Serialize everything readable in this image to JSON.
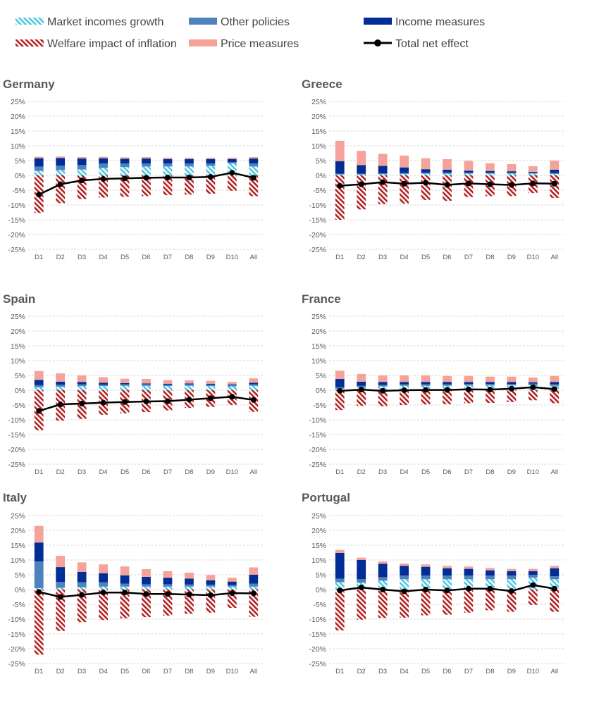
{
  "legend": [
    {
      "key": "market",
      "label": "Market incomes growth",
      "color": "#4BC8E3"
    },
    {
      "key": "other",
      "label": "Other policies",
      "color": "#4F81BD"
    },
    {
      "key": "income",
      "label": "Income measures",
      "color": "#002D96"
    },
    {
      "key": "welfare",
      "label": "Welfare impact of inflation",
      "color": "#B22222"
    },
    {
      "key": "price",
      "label": "Price measures",
      "color": "#F4A29A"
    },
    {
      "key": "total",
      "label": "Total net effect",
      "color": "#000000"
    }
  ],
  "chart_data": [
    {
      "type": "bar",
      "title": "Germany",
      "categories": [
        "D1",
        "D2",
        "D3",
        "D4",
        "D5",
        "D6",
        "D7",
        "D8",
        "D9",
        "D10",
        "All"
      ],
      "ylim": [
        -25,
        25
      ],
      "yticks": [
        "-25%",
        "-20%",
        "-15%",
        "-10%",
        "-5%",
        "0%",
        "5%",
        "10%",
        "15%",
        "20%",
        "25%"
      ],
      "grid": true,
      "series": [
        {
          "name": "Market incomes growth",
          "values": [
            1.5,
            1.8,
            2.0,
            2.5,
            2.8,
            3.0,
            3.0,
            3.0,
            3.2,
            4.0,
            3.0
          ]
        },
        {
          "name": "Other policies",
          "values": [
            1.5,
            1.5,
            1.5,
            1.5,
            1.2,
            1.0,
            1.0,
            1.0,
            0.8,
            0.5,
            1.0
          ]
        },
        {
          "name": "Income measures",
          "values": [
            2.8,
            2.6,
            2.2,
            1.8,
            1.6,
            1.7,
            1.5,
            1.5,
            1.5,
            1.0,
            1.7
          ]
        },
        {
          "name": "Price measures",
          "values": [
            0.5,
            0.5,
            0.5,
            0.5,
            0.5,
            0.5,
            0.5,
            0.5,
            0.5,
            0.5,
            0.5
          ]
        },
        {
          "name": "Welfare impact of inflation",
          "values": [
            -12.7,
            -9.4,
            -8.0,
            -7.5,
            -7.2,
            -7.0,
            -6.7,
            -6.5,
            -6.2,
            -5.2,
            -7.0
          ]
        },
        {
          "name": "Total net effect",
          "values": [
            -6.5,
            -3.0,
            -1.7,
            -1.2,
            -1.0,
            -0.8,
            -0.7,
            -0.7,
            -0.5,
            0.9,
            -0.8
          ]
        }
      ]
    },
    {
      "type": "bar",
      "title": "Greece",
      "categories": [
        "D1",
        "D2",
        "D3",
        "D4",
        "D5",
        "D6",
        "D7",
        "D8",
        "D9",
        "D10",
        "All"
      ],
      "ylim": [
        -25,
        25
      ],
      "yticks": [
        "-25%",
        "-20%",
        "-15%",
        "-10%",
        "-5%",
        "0%",
        "5%",
        "10%",
        "15%",
        "20%",
        "25%"
      ],
      "grid": true,
      "series": [
        {
          "name": "Market incomes growth",
          "values": [
            0.3,
            0.3,
            0.4,
            0.5,
            0.6,
            0.6,
            0.6,
            0.6,
            0.6,
            0.6,
            0.5
          ]
        },
        {
          "name": "Other policies",
          "values": [
            0.3,
            0.3,
            0.3,
            0.3,
            0.3,
            0.3,
            0.3,
            0.3,
            0.3,
            0.3,
            0.3
          ]
        },
        {
          "name": "Income measures",
          "values": [
            4.2,
            2.9,
            2.5,
            1.9,
            1.2,
            1.0,
            0.7,
            0.6,
            0.5,
            0.3,
            1.1
          ]
        },
        {
          "name": "Price measures",
          "values": [
            6.9,
            4.8,
            4.1,
            4.0,
            3.7,
            3.6,
            3.3,
            2.6,
            2.4,
            1.9,
            3.1
          ]
        },
        {
          "name": "Welfare impact of inflation",
          "values": [
            -15.0,
            -11.5,
            -9.7,
            -9.5,
            -8.3,
            -8.6,
            -7.3,
            -7.0,
            -7.0,
            -6.0,
            -7.6
          ]
        },
        {
          "name": "Total net effect",
          "values": [
            -3.5,
            -3.0,
            -2.3,
            -2.8,
            -2.5,
            -3.2,
            -2.7,
            -3.0,
            -3.2,
            -2.7,
            -2.8
          ]
        }
      ]
    },
    {
      "type": "bar",
      "title": "Spain",
      "categories": [
        "D1",
        "D2",
        "D3",
        "D4",
        "D5",
        "D6",
        "D7",
        "D8",
        "D9",
        "D10",
        "All"
      ],
      "ylim": [
        -25,
        25
      ],
      "yticks": [
        "-25%",
        "-20%",
        "-15%",
        "-10%",
        "-5%",
        "0%",
        "5%",
        "10%",
        "15%",
        "20%",
        "25%"
      ],
      "grid": true,
      "series": [
        {
          "name": "Market incomes growth",
          "values": [
            1.0,
            1.2,
            1.4,
            1.4,
            1.5,
            1.5,
            1.4,
            1.5,
            1.4,
            1.3,
            1.5
          ]
        },
        {
          "name": "Other policies",
          "values": [
            0.7,
            0.7,
            0.6,
            0.5,
            0.5,
            0.5,
            0.5,
            0.5,
            0.5,
            0.5,
            0.5
          ]
        },
        {
          "name": "Income measures",
          "values": [
            1.8,
            1.0,
            0.8,
            0.6,
            0.4,
            0.3,
            0.3,
            0.3,
            0.3,
            0.2,
            0.5
          ]
        },
        {
          "name": "Price measures",
          "values": [
            3.0,
            2.8,
            2.2,
            1.9,
            1.5,
            1.5,
            1.2,
            1.0,
            1.0,
            0.8,
            1.5
          ]
        },
        {
          "name": "Welfare impact of inflation",
          "values": [
            -13.5,
            -10.3,
            -9.7,
            -8.3,
            -7.8,
            -7.4,
            -6.8,
            -6.0,
            -5.6,
            -5.0,
            -7.3
          ]
        },
        {
          "name": "Total net effect",
          "values": [
            -7.0,
            -4.8,
            -4.5,
            -4.2,
            -4.0,
            -3.8,
            -3.7,
            -3.2,
            -2.7,
            -2.2,
            -3.3
          ]
        }
      ]
    },
    {
      "type": "bar",
      "title": "France",
      "categories": [
        "D1",
        "D2",
        "D3",
        "D4",
        "D5",
        "D6",
        "D7",
        "D8",
        "D9",
        "D10",
        "All"
      ],
      "ylim": [
        -25,
        25
      ],
      "yticks": [
        "-25%",
        "-20%",
        "-15%",
        "-10%",
        "-5%",
        "0%",
        "5%",
        "10%",
        "15%",
        "20%",
        "25%"
      ],
      "grid": true,
      "series": [
        {
          "name": "Market incomes growth",
          "values": [
            0.5,
            1.0,
            1.3,
            1.5,
            1.5,
            1.5,
            1.6,
            1.6,
            1.6,
            1.7,
            1.5
          ]
        },
        {
          "name": "Other policies",
          "values": [
            0.5,
            0.5,
            0.5,
            0.5,
            0.5,
            0.5,
            0.5,
            0.5,
            0.5,
            0.5,
            0.5
          ]
        },
        {
          "name": "Income measures",
          "values": [
            2.8,
            1.4,
            1.0,
            0.8,
            0.8,
            0.8,
            0.7,
            0.7,
            0.7,
            0.5,
            0.8
          ]
        },
        {
          "name": "Price measures",
          "values": [
            2.8,
            2.6,
            2.2,
            2.2,
            2.2,
            2.0,
            2.0,
            1.8,
            1.8,
            1.6,
            2.0
          ]
        },
        {
          "name": "Welfare impact of inflation",
          "values": [
            -6.7,
            -5.3,
            -5.4,
            -5.0,
            -4.8,
            -4.7,
            -4.4,
            -4.3,
            -4.0,
            -3.4,
            -4.4
          ]
        },
        {
          "name": "Total net effect",
          "values": [
            -0.2,
            0.2,
            -0.2,
            0.0,
            0.1,
            0.1,
            0.3,
            0.2,
            0.5,
            1.0,
            0.4
          ]
        }
      ]
    },
    {
      "type": "bar",
      "title": "Italy",
      "categories": [
        "D1",
        "D2",
        "D3",
        "D4",
        "D5",
        "D6",
        "D7",
        "D8",
        "D9",
        "D10",
        "All"
      ],
      "ylim": [
        -25,
        25
      ],
      "yticks": [
        "-25%",
        "-20%",
        "-15%",
        "-10%",
        "-5%",
        "0%",
        "5%",
        "10%",
        "15%",
        "20%",
        "25%"
      ],
      "grid": true,
      "series": [
        {
          "name": "Market incomes growth",
          "values": [
            0.5,
            0.6,
            0.8,
            1.0,
            1.0,
            1.0,
            1.0,
            1.0,
            1.0,
            1.0,
            1.0
          ]
        },
        {
          "name": "Other policies",
          "values": [
            9.0,
            2.0,
            1.7,
            1.5,
            1.0,
            0.8,
            0.8,
            0.7,
            0.6,
            0.5,
            1.0
          ]
        },
        {
          "name": "Income measures",
          "values": [
            6.4,
            5.0,
            3.5,
            3.0,
            2.8,
            2.5,
            2.2,
            2.0,
            1.5,
            1.2,
            3.0
          ]
        },
        {
          "name": "Price measures",
          "values": [
            5.6,
            3.8,
            3.2,
            3.0,
            3.0,
            2.6,
            2.2,
            2.0,
            1.8,
            1.3,
            2.5
          ]
        },
        {
          "name": "Welfare impact of inflation",
          "values": [
            -22.0,
            -14.0,
            -11.0,
            -10.3,
            -9.7,
            -9.3,
            -8.8,
            -8.2,
            -7.8,
            -6.2,
            -9.2
          ]
        },
        {
          "name": "Total net effect",
          "values": [
            -0.8,
            -2.5,
            -1.8,
            -1.0,
            -1.0,
            -1.5,
            -1.5,
            -1.7,
            -1.9,
            -1.2,
            -1.3
          ]
        }
      ]
    },
    {
      "type": "bar",
      "title": "Portugal",
      "categories": [
        "D1",
        "D2",
        "D3",
        "D4",
        "D5",
        "D6",
        "D7",
        "D8",
        "D9",
        "D10",
        "All"
      ],
      "ylim": [
        -25,
        25
      ],
      "yticks": [
        "-25%",
        "-20%",
        "-15%",
        "-10%",
        "-5%",
        "0%",
        "5%",
        "10%",
        "15%",
        "20%",
        "25%"
      ],
      "grid": true,
      "series": [
        {
          "name": "Market incomes growth",
          "values": [
            2.5,
            2.3,
            3.0,
            3.5,
            3.5,
            3.5,
            3.5,
            3.5,
            3.5,
            4.0,
            3.5
          ]
        },
        {
          "name": "Other policies",
          "values": [
            1.2,
            1.2,
            1.2,
            1.2,
            1.2,
            1.2,
            1.2,
            1.2,
            1.2,
            1.0,
            1.0
          ]
        },
        {
          "name": "Income measures",
          "values": [
            8.7,
            6.5,
            4.5,
            3.3,
            3.0,
            2.5,
            2.3,
            1.8,
            1.5,
            1.2,
            2.7
          ]
        },
        {
          "name": "Price measures",
          "values": [
            1.0,
            0.8,
            0.8,
            0.8,
            0.8,
            0.8,
            0.8,
            0.8,
            0.8,
            0.8,
            0.8
          ]
        },
        {
          "name": "Welfare impact of inflation",
          "values": [
            -13.8,
            -10.2,
            -9.6,
            -9.5,
            -8.7,
            -8.5,
            -7.8,
            -7.0,
            -7.5,
            -5.2,
            -7.5
          ]
        },
        {
          "name": "Total net effect",
          "values": [
            -0.3,
            0.7,
            0.0,
            -0.6,
            0.0,
            -0.3,
            0.3,
            0.3,
            -0.5,
            1.5,
            0.3
          ]
        }
      ]
    }
  ]
}
